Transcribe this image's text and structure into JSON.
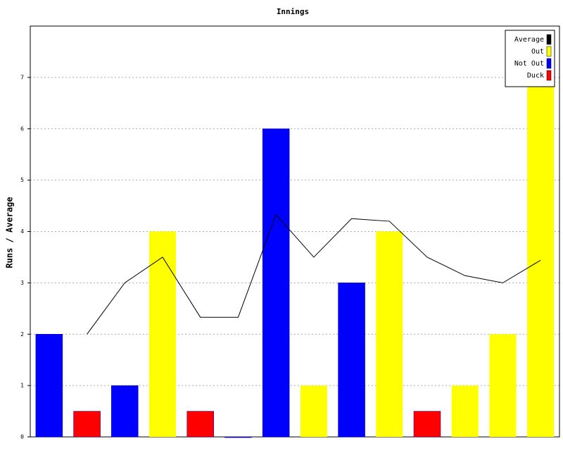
{
  "chart_data": {
    "type": "bar",
    "title": "Innings",
    "y_label": "Runs / Average",
    "categories": [
      null,
      null,
      null,
      null,
      null,
      null,
      null,
      null,
      null,
      null,
      null,
      null,
      null,
      null
    ],
    "series": [
      {
        "name": "Average",
        "type": "line",
        "color": "#000000",
        "values": [
          null,
          2,
          3,
          3.5,
          2.33,
          2.33,
          4.33,
          3.5,
          4.25,
          4.2,
          3.5,
          3.14,
          3,
          3.44
        ]
      },
      {
        "name": "Out",
        "type": "bar",
        "color": "#ffff00",
        "values": [
          null,
          null,
          null,
          4,
          null,
          null,
          null,
          1,
          null,
          4,
          null,
          1,
          2,
          7
        ]
      },
      {
        "name": "Not Out",
        "type": "bar",
        "color": "#0000ff",
        "values": [
          2,
          null,
          1,
          null,
          null,
          0,
          6,
          null,
          3,
          null,
          null,
          null,
          null,
          null
        ]
      },
      {
        "name": "Duck",
        "type": "bar",
        "color": "#ff0000",
        "values": [
          null,
          0.5,
          null,
          null,
          0.5,
          null,
          null,
          null,
          null,
          null,
          0.5,
          null,
          null,
          null
        ]
      }
    ],
    "ylim": [
      0,
      8
    ],
    "yticks": [
      0,
      1,
      2,
      3,
      4,
      5,
      6,
      7
    ],
    "grid": true,
    "legend": "top-right"
  }
}
